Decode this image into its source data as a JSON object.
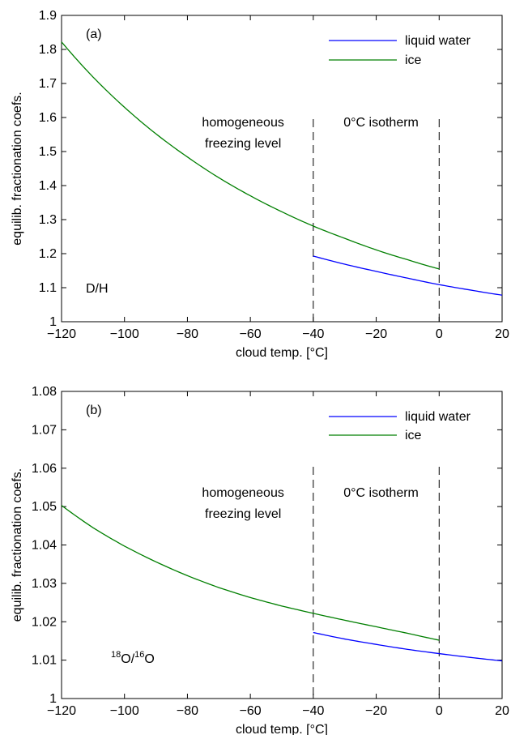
{
  "colors": {
    "liquid": "#0000ff",
    "ice": "#007f00",
    "axes": "#000000"
  },
  "chart_data": [
    {
      "type": "line",
      "panel_label": "(a)",
      "annotation": "D/H",
      "xlabel": "cloud temp. [°C]",
      "ylabel": "equilib. fractionation coefs.",
      "xlim": [
        -120,
        20
      ],
      "ylim": [
        1,
        1.9
      ],
      "xticks": [
        -120,
        -100,
        -80,
        -60,
        -40,
        -20,
        0,
        20
      ],
      "xtick_labels": [
        "−120",
        "−100",
        "−80",
        "−60",
        "−40",
        "−20",
        "0",
        "20"
      ],
      "yticks": [
        1,
        1.1,
        1.2,
        1.3,
        1.4,
        1.5,
        1.6,
        1.7,
        1.8,
        1.9
      ],
      "ytick_labels": [
        "1",
        "1.1",
        "1.2",
        "1.3",
        "1.4",
        "1.5",
        "1.6",
        "1.7",
        "1.8",
        "1.9"
      ],
      "legend_position": "top-right",
      "vlines": [
        {
          "x": -40,
          "label_lines": [
            "homogeneous",
            "freezing level"
          ]
        },
        {
          "x": 0,
          "label_lines": [
            "0°C isotherm"
          ]
        }
      ],
      "series": [
        {
          "name": "liquid water",
          "color_key": "liquid",
          "x": [
            -40,
            -30,
            -20,
            -10,
            0,
            10,
            20
          ],
          "y": [
            1.193,
            1.169,
            1.148,
            1.128,
            1.109,
            1.093,
            1.078
          ]
        },
        {
          "name": "ice",
          "color_key": "ice",
          "x": [
            -120,
            -110,
            -100,
            -90,
            -80,
            -70,
            -60,
            -50,
            -40,
            -30,
            -20,
            -10,
            0
          ],
          "y": [
            1.822,
            1.719,
            1.63,
            1.552,
            1.484,
            1.423,
            1.37,
            1.323,
            1.281,
            1.245,
            1.211,
            1.182,
            1.155
          ]
        }
      ]
    },
    {
      "type": "line",
      "panel_label": "(b)",
      "annotation": "18O/16O",
      "annotation_parts": [
        "18",
        "O/",
        "16",
        "O"
      ],
      "xlabel": "cloud temp. [°C]",
      "ylabel": "equilib. fractionation coefs.",
      "xlim": [
        -120,
        20
      ],
      "ylim": [
        1,
        1.08
      ],
      "xticks": [
        -120,
        -100,
        -80,
        -60,
        -40,
        -20,
        0,
        20
      ],
      "xtick_labels": [
        "−120",
        "−100",
        "−80",
        "−60",
        "−40",
        "−20",
        "0",
        "20"
      ],
      "yticks": [
        1,
        1.01,
        1.02,
        1.03,
        1.04,
        1.05,
        1.06,
        1.07,
        1.08
      ],
      "ytick_labels": [
        "1",
        "1.01",
        "1.02",
        "1.03",
        "1.04",
        "1.05",
        "1.06",
        "1.07",
        "1.08"
      ],
      "legend_position": "top-right",
      "vlines": [
        {
          "x": -40,
          "label_lines": [
            "homogeneous",
            "freezing level"
          ]
        },
        {
          "x": 0,
          "label_lines": [
            "0°C isotherm"
          ]
        }
      ],
      "series": [
        {
          "name": "liquid water",
          "color_key": "liquid",
          "x": [
            -40,
            -30,
            -20,
            -10,
            0,
            10,
            20
          ],
          "y": [
            1.0172,
            1.0155,
            1.0141,
            1.0128,
            1.0117,
            1.0107,
            1.0098
          ]
        },
        {
          "name": "ice",
          "color_key": "ice",
          "x": [
            -120,
            -110,
            -100,
            -90,
            -80,
            -70,
            -60,
            -50,
            -40,
            -30,
            -20,
            -10,
            0
          ],
          "y": [
            1.0503,
            1.0445,
            1.0397,
            1.0356,
            1.032,
            1.0289,
            1.0263,
            1.0241,
            1.0222,
            1.0204,
            1.0187,
            1.017,
            1.0152
          ]
        }
      ]
    }
  ]
}
